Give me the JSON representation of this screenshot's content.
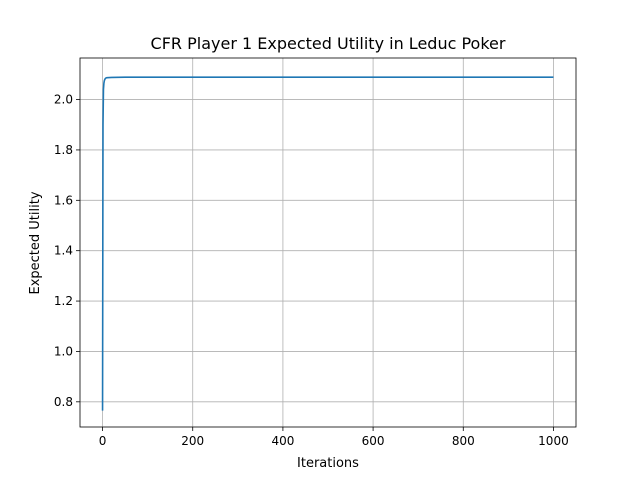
{
  "chart_data": {
    "type": "line",
    "title": "CFR Player 1 Expected Utility in Leduc Poker",
    "xlabel": "Iterations",
    "ylabel": "Expected Utility",
    "xlim": [
      -50,
      1050
    ],
    "ylim": [
      0.7,
      2.165
    ],
    "grid": true,
    "xticks": [
      0,
      200,
      400,
      600,
      800,
      1000
    ],
    "xtick_labels": [
      "0",
      "200",
      "400",
      "600",
      "800",
      "1000"
    ],
    "yticks": [
      0.8,
      1.0,
      1.2,
      1.4,
      1.6,
      1.8,
      2.0
    ],
    "ytick_labels": [
      "0.8",
      "1.0",
      "1.2",
      "1.4",
      "1.6",
      "1.8",
      "2.0"
    ],
    "series": [
      {
        "color": "#1f77b4",
        "x": [
          0,
          1,
          2,
          3,
          4,
          5,
          6,
          8,
          10,
          20,
          50,
          100,
          200,
          400,
          600,
          800,
          1000
        ],
        "y": [
          0.765,
          1.9,
          2.04,
          2.065,
          2.075,
          2.08,
          2.083,
          2.086,
          2.087,
          2.088,
          2.089,
          2.089,
          2.089,
          2.089,
          2.089,
          2.089,
          2.089
        ]
      }
    ]
  }
}
